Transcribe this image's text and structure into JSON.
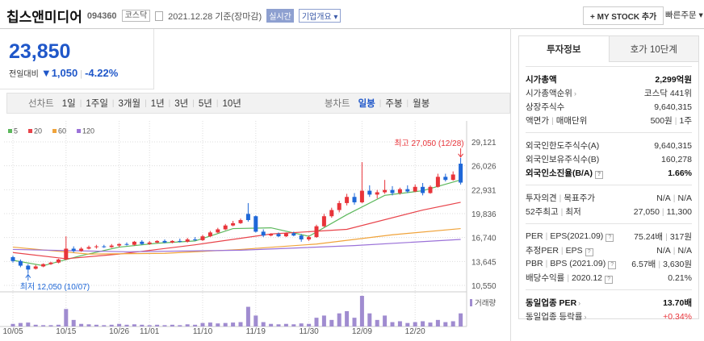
{
  "header": {
    "name": "칩스앤미디어",
    "code": "094360",
    "market": "코스닥",
    "date": "2021.12.28 기준(장마감)",
    "realtime": "실시간",
    "overview": "기업개요",
    "mystock": "+ MY STOCK 추가",
    "order": "빠른주문"
  },
  "price": {
    "current": "23,850",
    "change_label": "전일대비",
    "change": "1,050",
    "rate": "-4.22%"
  },
  "periods": {
    "line_label": "선차트",
    "line": [
      "1일",
      "1주일",
      "3개월",
      "1년",
      "3년",
      "5년",
      "10년"
    ],
    "candle_label": "봉차트",
    "candle": [
      "일봉",
      "주봉",
      "월봉"
    ]
  },
  "chart_data": {
    "type": "candlestick",
    "categories": [
      "10/05",
      null,
      null,
      null,
      null,
      null,
      null,
      "10/15",
      null,
      null,
      null,
      null,
      null,
      null,
      "10/26",
      null,
      null,
      null,
      "11/01",
      null,
      null,
      null,
      null,
      null,
      null,
      "11/10",
      null,
      null,
      null,
      null,
      null,
      null,
      "11/19",
      null,
      null,
      null,
      null,
      null,
      null,
      "11/30",
      null,
      null,
      null,
      null,
      null,
      null,
      "12/09",
      null,
      null,
      null,
      null,
      null,
      null,
      "12/20",
      null,
      null,
      null,
      null,
      null,
      null
    ],
    "open": [
      14200,
      13700,
      13100,
      12700,
      13000,
      13300,
      13500,
      13900,
      15300,
      15000,
      15300,
      15500,
      15600,
      15500,
      15700,
      15900,
      15800,
      16200,
      15900,
      16100,
      16300,
      16100,
      16300,
      16200,
      16500,
      16400,
      16900,
      17400,
      17800,
      18300,
      18600,
      19800,
      19500,
      17500,
      17000,
      17200,
      16900,
      17300,
      17000,
      16500,
      16800,
      18200,
      19500,
      20300,
      21200,
      22000,
      21300,
      22800,
      22300,
      22600,
      22900,
      22500,
      23000,
      22700,
      23300,
      22500,
      23300,
      24600,
      24200,
      26300
    ],
    "high": [
      14400,
      13900,
      13300,
      13200,
      13400,
      13600,
      14000,
      16900,
      15600,
      15500,
      15700,
      15800,
      15800,
      15900,
      16000,
      16100,
      16300,
      16400,
      16300,
      16400,
      16500,
      16400,
      16600,
      16700,
      16800,
      17100,
      17600,
      18000,
      18500,
      18900,
      19200,
      21200,
      19600,
      17800,
      17300,
      17400,
      17400,
      17500,
      17200,
      17000,
      18400,
      19800,
      20600,
      21500,
      22400,
      22500,
      26500,
      23500,
      22900,
      24200,
      23400,
      23200,
      23500,
      23600,
      23800,
      23500,
      25000,
      25000,
      25300,
      27050
    ],
    "low": [
      13500,
      12900,
      12050,
      12600,
      12900,
      13200,
      13400,
      13800,
      14800,
      14900,
      15200,
      15300,
      15400,
      15400,
      15500,
      15700,
      15700,
      15800,
      15800,
      16000,
      16000,
      16000,
      16100,
      16100,
      16300,
      16300,
      16800,
      17300,
      17700,
      18200,
      18500,
      18800,
      17400,
      16800,
      16900,
      16800,
      16800,
      16900,
      16200,
      16300,
      16700,
      18100,
      19300,
      20000,
      20900,
      21000,
      21200,
      22000,
      21800,
      22400,
      22200,
      22300,
      22500,
      22600,
      22200,
      22400,
      23200,
      24000,
      24100,
      23600
    ],
    "close": [
      13700,
      13100,
      12600,
      13000,
      13300,
      13500,
      13900,
      15300,
      15000,
      15300,
      15500,
      15600,
      15500,
      15700,
      15900,
      15800,
      16200,
      15900,
      16100,
      16300,
      16100,
      16300,
      16200,
      16500,
      16400,
      16900,
      17400,
      17800,
      18300,
      18600,
      19000,
      19000,
      17500,
      17000,
      17200,
      16900,
      17300,
      17000,
      16500,
      16800,
      18200,
      19500,
      20300,
      21200,
      22000,
      21300,
      22800,
      22300,
      22600,
      22900,
      22500,
      23000,
      22700,
      23300,
      22500,
      23300,
      24600,
      24200,
      24900,
      23850
    ],
    "up_color": "#e8343a",
    "down_color": "#1f68d8",
    "ma": [
      {
        "name": "5",
        "color": "#5cb85c",
        "x": [
          0,
          4,
          9,
          14,
          19,
          24,
          29,
          34,
          39,
          44,
          49,
          54,
          59
        ],
        "values": [
          13800,
          13100,
          14400,
          15500,
          16000,
          16300,
          17900,
          18000,
          16900,
          19700,
          22200,
          22800,
          24200
        ]
      },
      {
        "name": "20",
        "color": "#e8434a",
        "x": [
          0,
          7,
          14,
          24,
          34,
          44,
          54,
          59
        ],
        "values": [
          14800,
          14000,
          14600,
          15800,
          17200,
          17800,
          20300,
          21300
        ]
      },
      {
        "name": "60",
        "color": "#f0a33a",
        "x": [
          0,
          10,
          20,
          30,
          40,
          50,
          59
        ],
        "values": [
          15500,
          14600,
          14700,
          15200,
          15900,
          17100,
          17900
        ]
      },
      {
        "name": "120",
        "color": "#9b72d8",
        "x": [
          0,
          15,
          30,
          45,
          59
        ],
        "values": [
          15200,
          14900,
          15100,
          15700,
          16500
        ]
      }
    ],
    "volume": [
      60,
      80,
      90,
      40,
      30,
      30,
      40,
      400,
      150,
      60,
      50,
      40,
      30,
      40,
      60,
      40,
      50,
      40,
      30,
      40,
      30,
      40,
      30,
      50,
      40,
      80,
      90,
      70,
      80,
      90,
      100,
      450,
      250,
      100,
      60,
      50,
      60,
      50,
      70,
      60,
      200,
      250,
      150,
      300,
      350,
      200,
      700,
      300,
      150,
      250,
      100,
      120,
      80,
      100,
      120,
      90,
      150,
      100,
      120,
      300
    ],
    "volume_color": "#a08cd0",
    "volume_label": "거래량",
    "ylim": [
      9924,
      29956
    ],
    "yticks": [
      {
        "value": 10550,
        "label": "10,550"
      },
      {
        "value": 13645,
        "label": "13,645"
      },
      {
        "value": 16740,
        "label": "16,740"
      },
      {
        "value": 19836,
        "label": "19,836"
      },
      {
        "value": 22931,
        "label": "22,931"
      },
      {
        "value": 26026,
        "label": "26,026"
      },
      {
        "value": 29121,
        "label": "29,121"
      }
    ],
    "grid": true,
    "high_label": "최고 27,050 (12/28)",
    "low_label": "최저 12,050 (10/07)"
  },
  "info": {
    "tabs": [
      "투자정보",
      "호가 10단계"
    ],
    "groups": [
      [
        {
          "label": [
            "시가총액"
          ],
          "value": [
            "2,299억원"
          ]
        },
        {
          "label": [
            "시가총액순위"
          ],
          "value": [
            "코스닥 441위"
          ]
        },
        {
          "label": [
            "상장주식수"
          ],
          "value": [
            "9,640,315"
          ]
        },
        {
          "label": [
            "액면가",
            "매매단위"
          ],
          "value": [
            "500원",
            "1주"
          ]
        }
      ],
      [
        {
          "label": [
            "외국인한도주식수(A)"
          ],
          "value": [
            "9,640,315"
          ]
        },
        {
          "label": [
            "외국인보유주식수(B)"
          ],
          "value": [
            "160,278"
          ]
        },
        {
          "label": [
            "외국인소진율(B/A)"
          ],
          "value": [
            "1.66%"
          ]
        }
      ],
      [
        {
          "label": [
            "투자의견",
            "목표주가"
          ],
          "value": [
            "N/A",
            "N/A"
          ]
        },
        {
          "label": [
            "52주최고",
            "최저"
          ],
          "value": [
            "27,050",
            "11,300"
          ]
        }
      ],
      [
        {
          "label": [
            "PER",
            "EPS(2021.09)"
          ],
          "value": [
            "75.24배",
            "317원"
          ]
        },
        {
          "label": [
            "추정PER",
            "EPS"
          ],
          "value": [
            "N/A",
            "N/A"
          ]
        },
        {
          "label": [
            "PBR",
            "BPS (2021.09)"
          ],
          "value": [
            "6.57배",
            "3,630원"
          ]
        },
        {
          "label": [
            "배당수익률",
            "2020.12"
          ],
          "value": [
            "0.21%"
          ]
        }
      ],
      [
        {
          "label": [
            "동일업종 PER"
          ],
          "value": [
            "13.70배"
          ]
        },
        {
          "label": [
            "동일업종 등락률"
          ],
          "value": [
            "+0.34%"
          ]
        }
      ]
    ]
  }
}
